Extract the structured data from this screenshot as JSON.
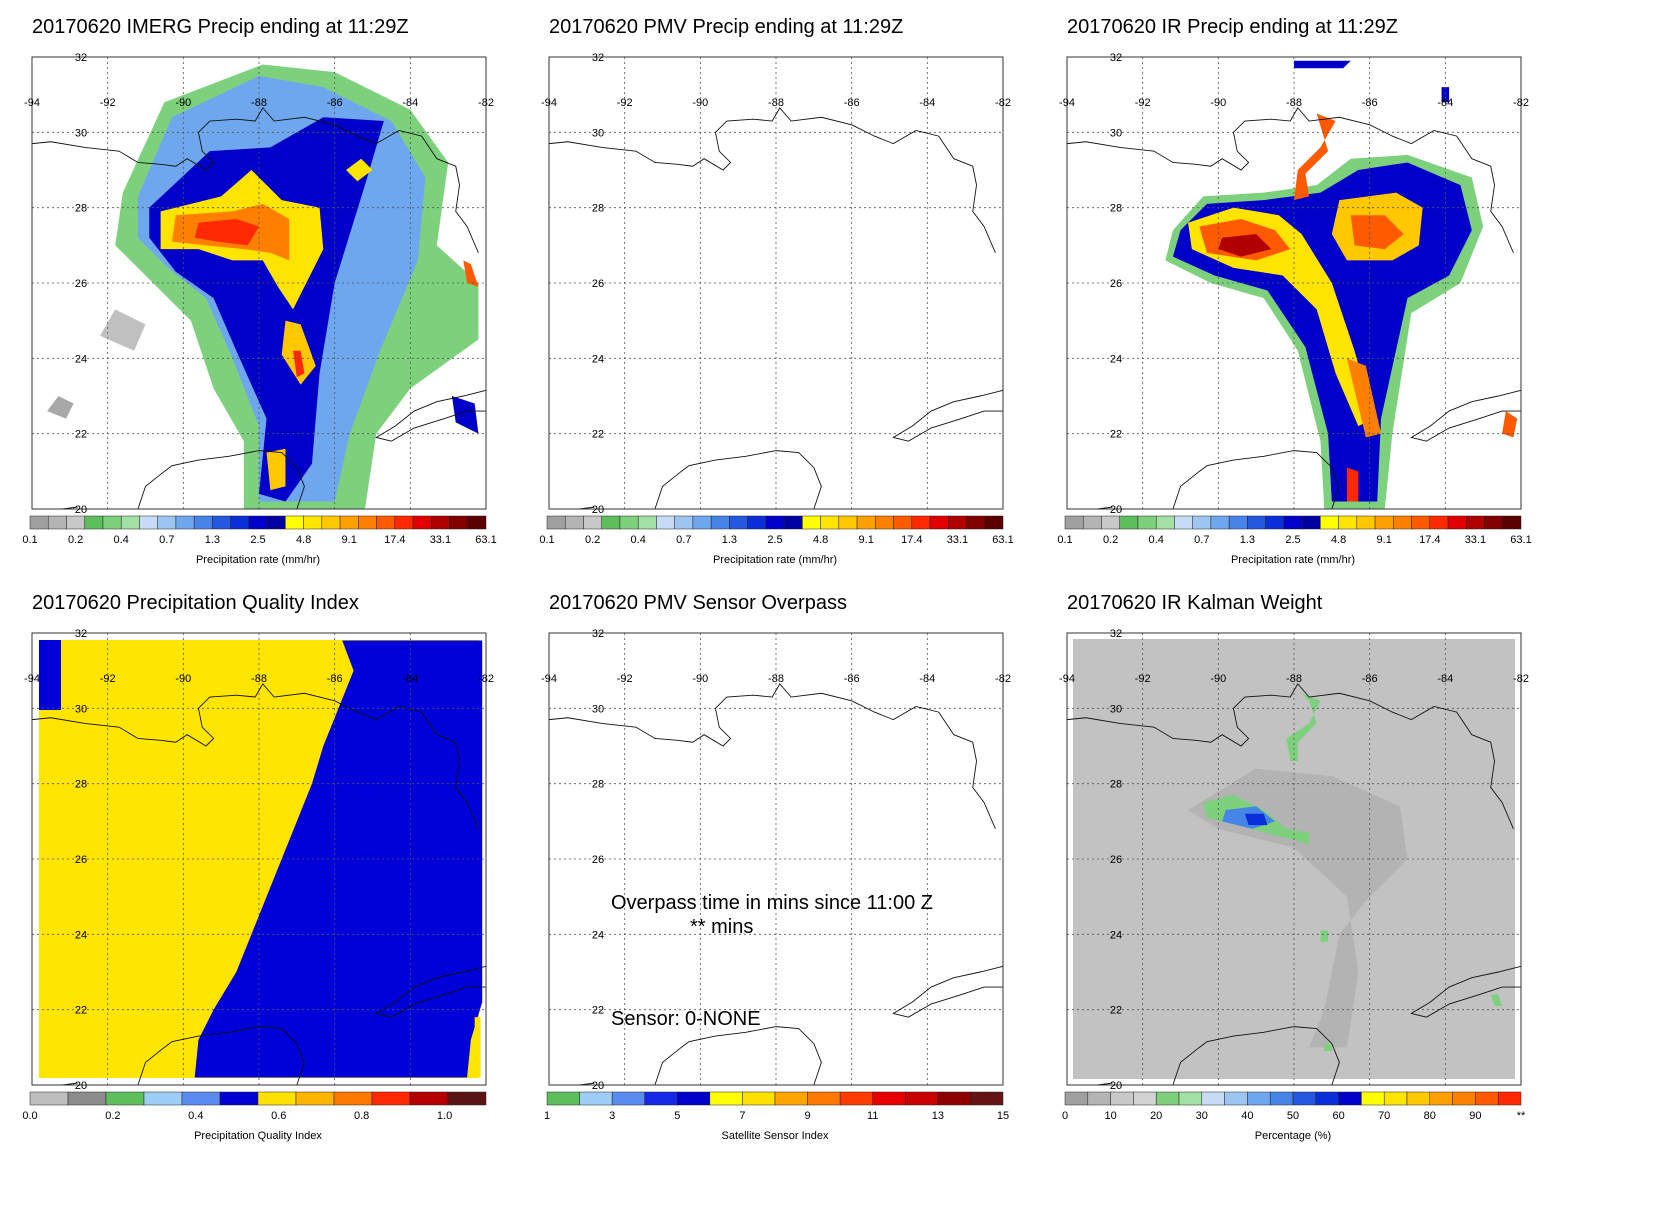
{
  "date": "20170620",
  "map_grid": {
    "lon_labels": [
      "-94",
      "-92",
      "-90",
      "-88",
      "-86",
      "-84",
      "-82"
    ],
    "lat_labels": [
      "20",
      "22",
      "24",
      "26",
      "28",
      "30",
      "32"
    ]
  },
  "panels": [
    {
      "id": "imerg",
      "title": "20170620 IMERG Precip ending at 11:29Z",
      "colorbar": {
        "labels": [
          "0.1",
          "0.2",
          "0.4",
          "0.7",
          "1.3",
          "2.5",
          "4.8",
          "9.1",
          "17.4",
          "33.1",
          "63.1"
        ],
        "title": "Precipitation rate (mm/hr)"
      }
    },
    {
      "id": "pmv",
      "title": "20170620 PMV Precip ending at 11:29Z",
      "colorbar": {
        "labels": [
          "0.1",
          "0.2",
          "0.4",
          "0.7",
          "1.3",
          "2.5",
          "4.8",
          "9.1",
          "17.4",
          "33.1",
          "63.1"
        ],
        "title": "Precipitation rate (mm/hr)"
      }
    },
    {
      "id": "ir",
      "title": "20170620 IR Precip ending at 11:29Z",
      "colorbar": {
        "labels": [
          "0.1",
          "0.2",
          "0.4",
          "0.7",
          "1.3",
          "2.5",
          "4.8",
          "9.1",
          "17.4",
          "33.1",
          "63.1"
        ],
        "title": "Precipitation rate (mm/hr)"
      }
    },
    {
      "id": "pqi",
      "title": "20170620 Precipitation Quality Index",
      "colorbar": {
        "labels": [
          "0.0",
          "0.2",
          "0.4",
          "0.6",
          "0.8",
          "1.0"
        ],
        "title": "Precipitation Quality Index"
      }
    },
    {
      "id": "sensor",
      "title": "20170620 PMV Sensor Overpass",
      "overpass_line1": "Overpass time in mins since 11:00 Z",
      "overpass_line2": "** mins",
      "sensor_label": "Sensor:",
      "sensor_value": "0-NONE",
      "colorbar": {
        "labels": [
          "1",
          "3",
          "5",
          "7",
          "9",
          "11",
          "13",
          "15"
        ],
        "title": "Satellite Sensor Index"
      }
    },
    {
      "id": "kalman",
      "title": "20170620 IR Kalman Weight",
      "colorbar": {
        "labels": [
          "0",
          "10",
          "20",
          "30",
          "40",
          "50",
          "60",
          "70",
          "80",
          "90",
          "**"
        ],
        "title": "Percentage (%)"
      }
    }
  ],
  "colors": {
    "precip_scale": [
      "#a0a0a0",
      "#b4b4b4",
      "#c8c8c8",
      "#5cbf5c",
      "#7dd17d",
      "#a3e0a3",
      "#c7dbf5",
      "#9cc5f2",
      "#6fa7ee",
      "#4784e8",
      "#2458e0",
      "#0a2fd8",
      "#0000c8",
      "#0000a0",
      "#ffff00",
      "#ffe400",
      "#ffc800",
      "#ffa000",
      "#ff8000",
      "#ff5a00",
      "#ff2800",
      "#e00000",
      "#b00000",
      "#800000",
      "#5a0000"
    ],
    "pqi_scale": [
      "#bebebe",
      "#8c8c8c",
      "#5cbf5c",
      "#9ecdf5",
      "#5a8cf0",
      "#0000d2",
      "#ffe100",
      "#ffb400",
      "#ff7800",
      "#ff2800",
      "#b40000",
      "#5a1414"
    ],
    "sensor_scale": [
      "#5cbf5c",
      "#9ecdf5",
      "#5a8cf0",
      "#1428e6",
      "#0000c8",
      "#ffff00",
      "#ffe100",
      "#ffa500",
      "#ff7800",
      "#ff3c00",
      "#e60000",
      "#c80000",
      "#8c0000",
      "#641414"
    ],
    "pqi_yellow": "#ffe500",
    "pqi_blue": "#0000d8",
    "kalman_gray": "#c2c2c2"
  }
}
